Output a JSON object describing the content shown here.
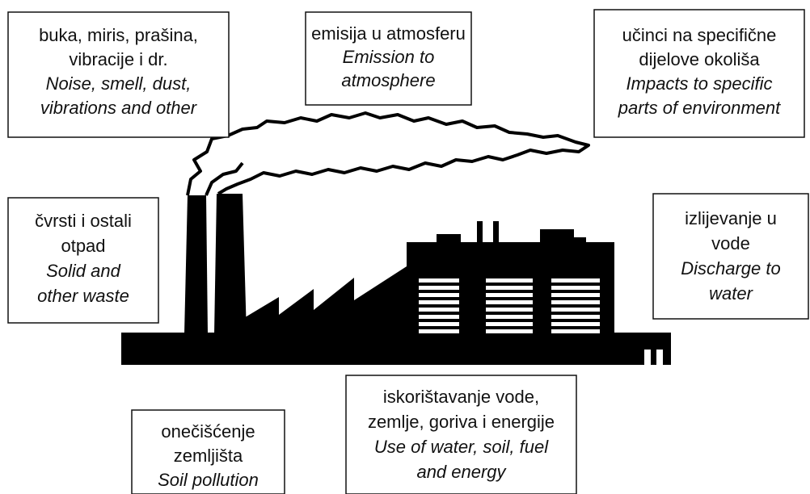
{
  "nodes": [
    {
      "hr": [
        "buka, miris, prašina,",
        "vibracije i dr."
      ],
      "en": [
        "Noise, smell, dust,",
        "vibrations and other"
      ]
    },
    {
      "hr": [
        "emisija u atmosferu"
      ],
      "en": [
        "Emission to",
        "atmosphere"
      ]
    },
    {
      "hr": [
        "učinci na specifične",
        "dijelove okoliša"
      ],
      "en": [
        "Impacts to specific",
        "parts of environment"
      ]
    },
    {
      "hr": [
        "čvrsti i ostali",
        "otpad"
      ],
      "en": [
        "Solid and",
        "other waste"
      ]
    },
    {
      "hr": [
        "izlijevanje u",
        "vode"
      ],
      "en": [
        "Discharge to",
        "water"
      ]
    },
    {
      "hr": [
        "iskorištavanje vode,",
        "zemlje, goriva i energije"
      ],
      "en": [
        "Use of water, soil, fuel",
        "and energy"
      ]
    },
    {
      "hr": [
        "onečišćenje",
        "zemljišta"
      ],
      "en": [
        "Soil pollution"
      ]
    }
  ]
}
